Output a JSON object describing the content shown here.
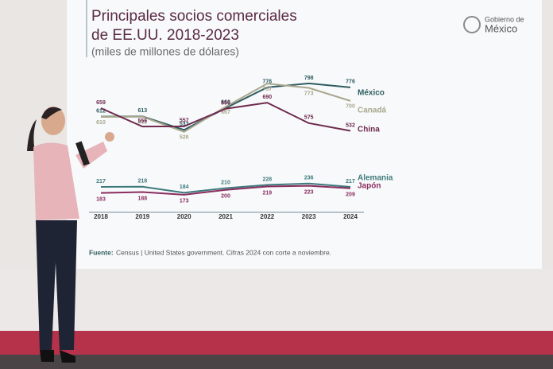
{
  "chart_data": {
    "type": "line",
    "title": [
      "Principales socios comerciales",
      "de EE.UU. 2018-2023"
    ],
    "subtitle": "(miles de millones de dólares)",
    "logo": [
      "Gobierno de",
      "México"
    ],
    "source_label": "Fuente:",
    "source": "Census | United States government. Cifras 2024 con corte a noviembre.",
    "categories": [
      "2018",
      "2019",
      "2020",
      "2021",
      "2022",
      "2023",
      "2024"
    ],
    "ylim": [
      150,
      820
    ],
    "series": [
      {
        "name": "México",
        "color": "#2f5d60",
        "values": [
          612,
          613,
          537,
          660,
          776,
          798,
          776
        ]
      },
      {
        "name": "Canadá",
        "color": "#a9a78c",
        "values": [
          610,
          611,
          526,
          667,
          797,
          773,
          700
        ]
      },
      {
        "name": "China",
        "color": "#6e2a4e",
        "values": [
          659,
          556,
          557,
          656,
          690,
          575,
          532
        ]
      },
      {
        "name": "Alemania",
        "color": "#3e7a7c",
        "values": [
          217,
          218,
          184,
          210,
          228,
          236,
          217
        ]
      },
      {
        "name": "Japón",
        "color": "#8b2d5e",
        "values": [
          183,
          188,
          173,
          200,
          219,
          223,
          209
        ]
      }
    ]
  }
}
